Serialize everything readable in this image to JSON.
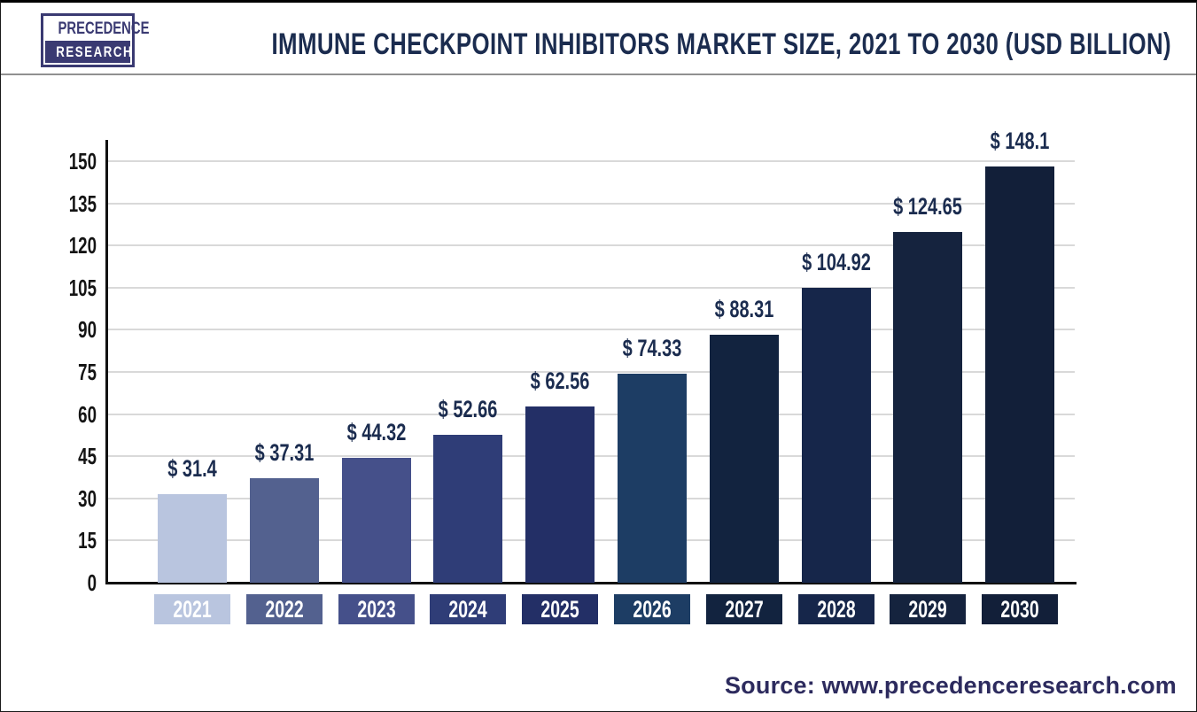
{
  "header": {
    "logo_line1": "PRECEDENCE",
    "logo_line2": "RESEARCH",
    "title": "IMMUNE CHECKPOINT INHIBITORS MARKET SIZE, 2021 TO 2030 (USD BILLION)"
  },
  "chart_data": {
    "type": "bar",
    "title": "Immune Checkpoint Inhibitors Market Size, 2021 to 2030 (USD Billion)",
    "categories": [
      "2021",
      "2022",
      "2023",
      "2024",
      "2025",
      "2026",
      "2027",
      "2028",
      "2029",
      "2030"
    ],
    "values": [
      31.4,
      37.31,
      44.32,
      52.66,
      62.56,
      74.33,
      88.31,
      104.92,
      124.65,
      148.1
    ],
    "value_prefix": "$ ",
    "xlabel": "",
    "ylabel": "",
    "ylim": [
      0,
      150
    ],
    "yticks": [
      0,
      15,
      30,
      45,
      60,
      75,
      90,
      105,
      120,
      135,
      150
    ],
    "grid": true,
    "legend": "none",
    "bar_colors": [
      "#b9c5df",
      "#53618f",
      "#45508a",
      "#2f3d77",
      "#232f66",
      "#1d3d64",
      "#12233f",
      "#16264a",
      "#15233e",
      "#121f39"
    ]
  },
  "footer": {
    "source": "Source: www.precedenceresearch.com"
  },
  "colors": {
    "title": "#1b2c4f",
    "axis": "#111111",
    "grid": "#d9d9d9",
    "tick_label": "#141414",
    "value_label": "#1b2c4f",
    "year_label_text": "#ffffff",
    "source_text": "#2d2b5e",
    "logo_navy": "#3a3a72",
    "divider": "#909090"
  }
}
